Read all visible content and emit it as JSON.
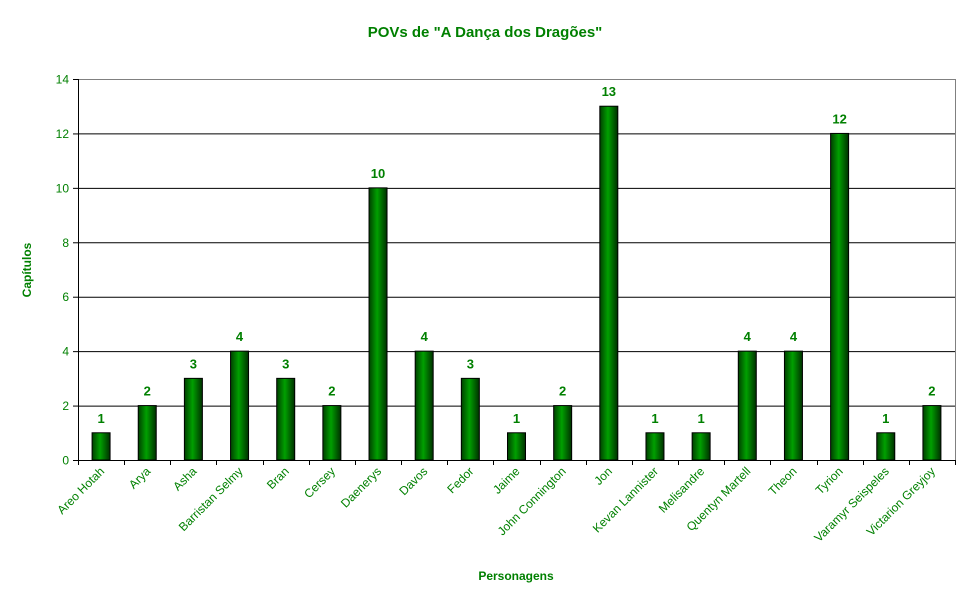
{
  "chart_data": {
    "type": "bar",
    "title": "POVs de \"A Dança dos Dragões\"",
    "xlabel": "Personagens",
    "ylabel": "Capítulos",
    "ylim": [
      0,
      14
    ],
    "yticks": [
      0,
      2,
      4,
      6,
      8,
      10,
      12,
      14
    ],
    "grid": true,
    "legend": "none",
    "data_labels": true,
    "categories": [
      "Areo Hotah",
      "Arya",
      "Asha",
      "Barristan Selmy",
      "Bran",
      "Cersey",
      "Daenerys",
      "Davos",
      "Fedor",
      "Jaime",
      "John Connington",
      "Jon",
      "Kevan Lannister",
      "Melisandre",
      "Quentyn Martell",
      "Theon",
      "Tyrion",
      "Varamyr Seispeles",
      "Victarion Greyjoy"
    ],
    "values": [
      1,
      2,
      3,
      4,
      3,
      2,
      10,
      4,
      3,
      1,
      2,
      13,
      1,
      1,
      4,
      4,
      12,
      1,
      2
    ],
    "colors": {
      "bar": "#008000",
      "bar_dark": "#004000",
      "text": "#008000",
      "grid": "#000000"
    }
  }
}
